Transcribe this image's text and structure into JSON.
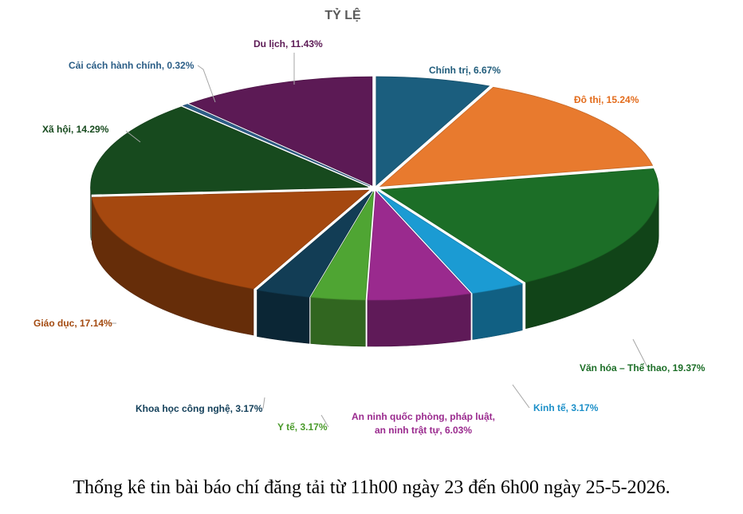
{
  "chart_data": {
    "type": "pie",
    "title": "TỶ LỆ",
    "categories": [
      "Chính trị",
      "Đô thị",
      "Văn hóa – Thể thao",
      "Kinh tế",
      "An ninh quốc phòng, pháp luật, an ninh trật tự",
      "Y tế",
      "Khoa học công nghệ",
      "Giáo dục",
      "Xã hội",
      "Cải cách hành chính",
      "Du lịch"
    ],
    "values": [
      6.67,
      15.24,
      19.37,
      3.17,
      6.03,
      3.17,
      3.17,
      17.14,
      14.29,
      0.32,
      11.43
    ],
    "labels": [
      [
        "Chính trị, 6.67%"
      ],
      [
        "Đô thị, 15.24%"
      ],
      [
        "Văn hóa – Thể thao, 19.37%"
      ],
      [
        "Kinh tế, 3.17%"
      ],
      [
        "An ninh quốc phòng, pháp luật,",
        "an ninh trật tự, 6.03%"
      ],
      [
        "Y tế, 3.17%"
      ],
      [
        "Khoa học công nghệ, 3.17%"
      ],
      [
        "Giáo dục, 17.14%"
      ],
      [
        "Xã hội, 14.29%"
      ],
      [
        "Cải cách hành chính, 0.32%"
      ],
      [
        "Du lịch, 11.43%"
      ]
    ],
    "colors": [
      "#1b5e7e",
      "#e87a2e",
      "#1c6e27",
      "#1b9bd3",
      "#9a2a8e",
      "#4fa533",
      "#123d55",
      "#a5480f",
      "#174a1e",
      "#2e5f8a",
      "#5c1a55"
    ],
    "label_colors": [
      "#1f5b7a",
      "#e36c1c",
      "#1c6e27",
      "#1b8fc8",
      "#9a2a8e",
      "#4a9a2b",
      "#14405a",
      "#a34a10",
      "#174a1e",
      "#2a5d86",
      "#5c1a55"
    ],
    "legend": "none",
    "style": "3d-exploded-pie"
  },
  "caption": "Thống kê tin bài báo chí đăng tải từ 11h00 ngày 23 đến 6h00 ngày 25-5-2026."
}
